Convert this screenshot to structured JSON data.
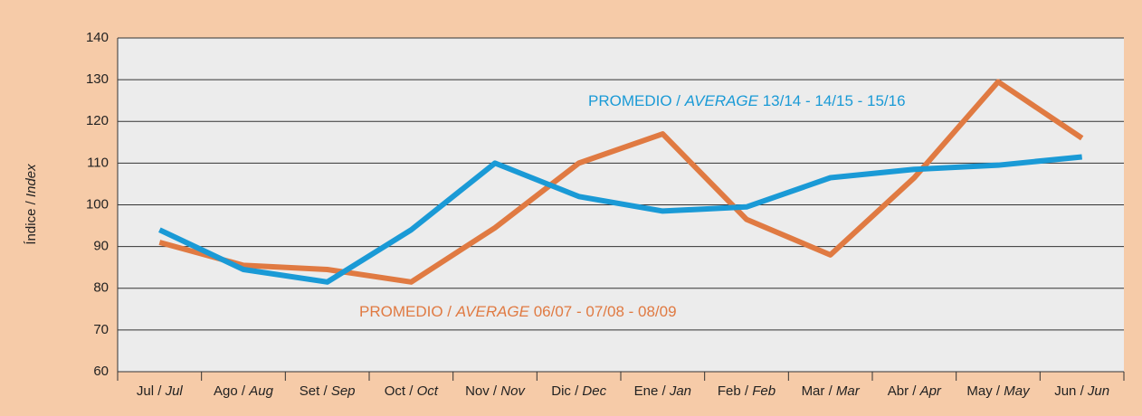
{
  "chart_data": {
    "type": "line",
    "y_label": "Índice / Index",
    "categories": [
      "Jul / Jul",
      "Ago / Aug",
      "Set / Sep",
      "Oct / Oct",
      "Nov / Nov",
      "Dic / Dec",
      "Ene / Jan",
      "Feb / Feb",
      "Mar / Mar",
      "Abr / Apr",
      "May / May",
      "Jun / Jun"
    ],
    "series": [
      {
        "name": "PROMEDIO / AVERAGE  13/14 - 14/15 - 15/16",
        "color": "#1a9ad6",
        "values": [
          94,
          84.5,
          81.5,
          94,
          110,
          102,
          98.5,
          99.5,
          106.5,
          108.5,
          109.5,
          111.5
        ]
      },
      {
        "name": "PROMEDIO / AVERAGE  06/07 - 07/08 - 08/09",
        "color": "#e07a42",
        "values": [
          91,
          85.5,
          84.5,
          81.5,
          94.5,
          110,
          117,
          96.5,
          88,
          106.5,
          129.5,
          116
        ]
      }
    ],
    "ylim": [
      60,
      140
    ],
    "yticks": [
      60,
      70,
      80,
      90,
      100,
      110,
      120,
      130,
      140
    ],
    "grid": true
  }
}
